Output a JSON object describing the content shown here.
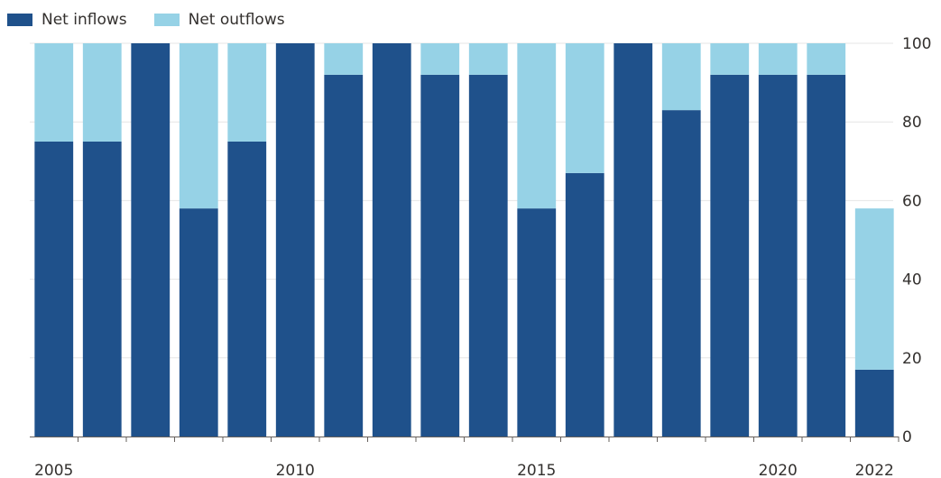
{
  "colors": {
    "inflows": "#1f518b",
    "outflows": "#96d2e6",
    "grid": "#e6e6e6",
    "axis": "#66605c"
  },
  "chart_data": {
    "type": "bar",
    "stacked": true,
    "categories": [
      "2005",
      "2006",
      "2007",
      "2008",
      "2009",
      "2010",
      "2011",
      "2012",
      "2013",
      "2014",
      "2015",
      "2016",
      "2017",
      "2018",
      "2019",
      "2020",
      "2021",
      "2022"
    ],
    "series": [
      {
        "name": "Net inflows",
        "color": "#1f518b",
        "values": [
          75,
          75,
          100,
          58,
          75,
          100,
          92,
          100,
          92,
          92,
          58,
          67,
          100,
          83,
          92,
          92,
          92,
          17
        ]
      },
      {
        "name": "Net outflows",
        "color": "#96d2e6",
        "values": [
          25,
          25,
          0,
          42,
          25,
          0,
          8,
          0,
          8,
          8,
          42,
          33,
          0,
          17,
          8,
          8,
          8,
          41
        ]
      }
    ],
    "x_tick_labels": [
      "2005",
      "2010",
      "2015",
      "2020",
      "2022"
    ],
    "y_ticks": [
      0,
      20,
      40,
      60,
      80,
      100
    ],
    "ylim": [
      0,
      100
    ],
    "y_axis_position": "right",
    "grid": true,
    "legend_position": "top-left"
  }
}
